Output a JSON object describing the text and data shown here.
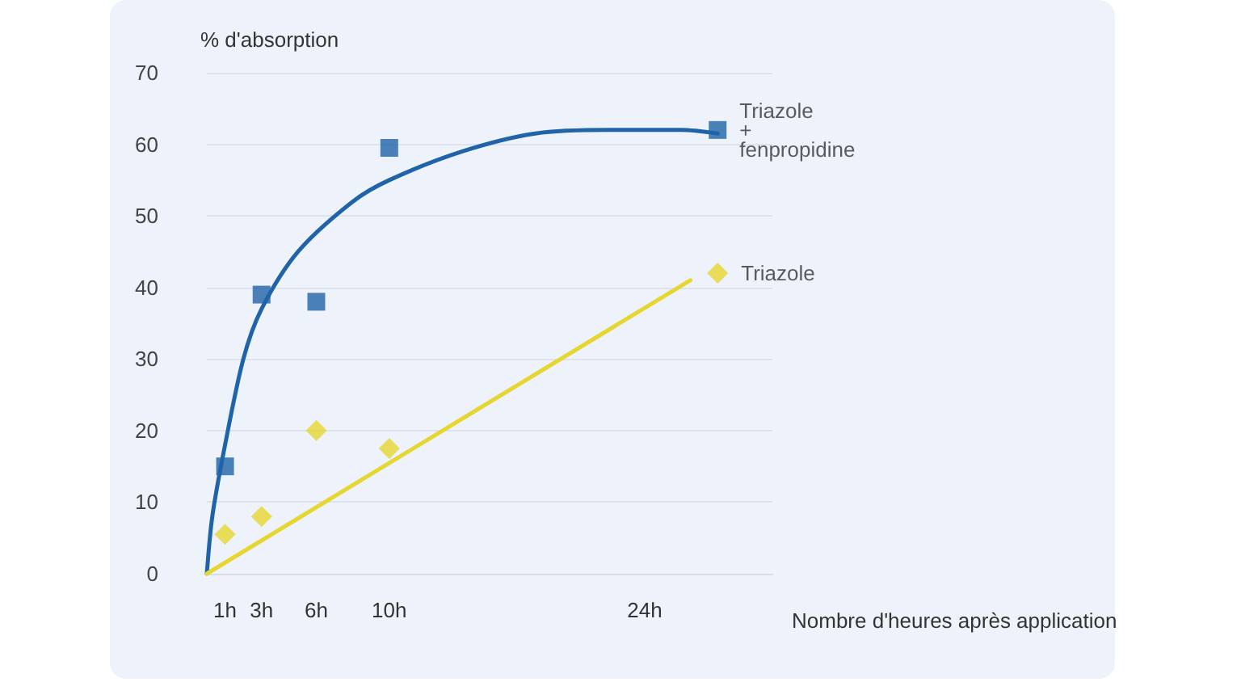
{
  "chart_data": {
    "type": "scatter",
    "ylabel": "% d'absorption",
    "xlabel": "Nombre d'heures après application",
    "xlim": [
      0,
      31
    ],
    "xticks": [
      {
        "value": 1,
        "label": "1h"
      },
      {
        "value": 3,
        "label": "3h"
      },
      {
        "value": 6,
        "label": "6h"
      },
      {
        "value": 10,
        "label": "10h"
      },
      {
        "value": 24,
        "label": "24h"
      }
    ],
    "ylim": [
      0,
      70
    ],
    "yticks": [
      0,
      10,
      20,
      30,
      40,
      50,
      60,
      70
    ],
    "grid": "y",
    "legend": false,
    "series": [
      {
        "name": "Triazole + fenpropidine",
        "color": "#1f63a8",
        "marker": "square",
        "x": [
          1,
          3,
          6,
          10,
          28
        ],
        "values": [
          15,
          39,
          38,
          59.5,
          62
        ]
      },
      {
        "name": "Triazole",
        "color": "#e6d630",
        "marker": "diamond",
        "x": [
          1,
          3,
          6,
          10,
          28
        ],
        "values": [
          5.5,
          8,
          20,
          17.5,
          42
        ]
      },
      {
        "type": "line",
        "color": "#1f63a8",
        "marker": "none",
        "x": [
          0,
          0.3,
          1,
          2,
          3,
          5,
          8,
          10,
          14,
          18,
          22,
          26,
          28
        ],
        "values": [
          0,
          8,
          18,
          30,
          37,
          45,
          52,
          55,
          59,
          61.5,
          62,
          62,
          61.5
        ]
      },
      {
        "type": "line",
        "color": "#e6d630",
        "marker": "none",
        "x": [
          0,
          26.5
        ],
        "values": [
          0,
          41
        ]
      }
    ]
  }
}
